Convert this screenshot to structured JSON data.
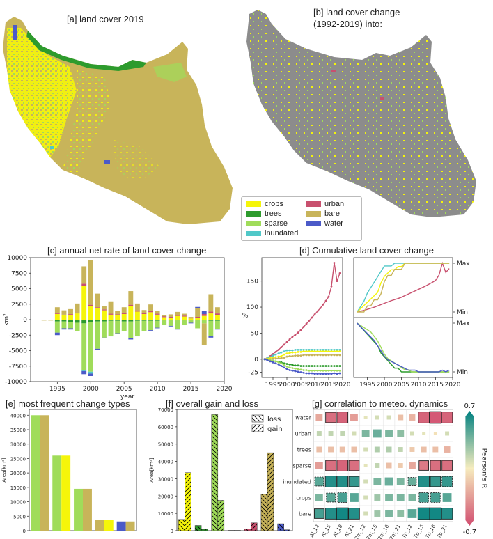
{
  "panels": {
    "a": {
      "title": "[a] land cover 2019"
    },
    "b": {
      "title_line1": "[b] land cover change",
      "title_line2": "(1992-2019) into:"
    },
    "c": {
      "title": "[c] annual net rate of land cover change"
    },
    "d": {
      "title": "[d] Cumulative land cover change"
    },
    "e": {
      "title": "[e] most frequent change types"
    },
    "f": {
      "title": "[f] overall gain and loss"
    },
    "g": {
      "title": "[g] correlation to meteo. dynamics"
    }
  },
  "legend": [
    {
      "label": "crops",
      "color": "#f5f50a"
    },
    {
      "label": "urban",
      "color": "#c8506e"
    },
    {
      "label": "trees",
      "color": "#2d9b2d"
    },
    {
      "label": "bare",
      "color": "#c8b45a"
    },
    {
      "label": "sparse",
      "color": "#a0dc5a"
    },
    {
      "label": "water",
      "color": "#4b5ac8"
    },
    {
      "label": "inundated",
      "color": "#50c8c8"
    }
  ],
  "colorbar": {
    "max": "0.7",
    "min": "-0.7",
    "label": "Pearson's R"
  },
  "chart_data": [
    {
      "type": "bar",
      "panel": "c",
      "title": "[c] annual net rate of land cover change",
      "xlabel": "year",
      "ylabel": "km²",
      "ylim": [
        -10000,
        10000
      ],
      "xlim": [
        1991,
        2020
      ],
      "x_ticks": [
        1995,
        2000,
        2005,
        2010,
        2015,
        2020
      ],
      "y_ticks": [
        -10000,
        -7500,
        -5000,
        -2500,
        0,
        2500,
        5000,
        7500,
        10000
      ],
      "years": [
        1993,
        1994,
        1995,
        1996,
        1997,
        1998,
        1999,
        2000,
        2001,
        2002,
        2003,
        2004,
        2005,
        2006,
        2007,
        2008,
        2009,
        2010,
        2011,
        2012,
        2013,
        2014,
        2015,
        2016,
        2017,
        2018,
        2019
      ],
      "series": [
        {
          "name": "crops",
          "color": "#f5f50a",
          "values": [
            0,
            0,
            900,
            700,
            800,
            1000,
            5500,
            2200,
            1800,
            1500,
            800,
            700,
            900,
            2200,
            1300,
            900,
            1200,
            800,
            400,
            300,
            600,
            500,
            200,
            300,
            600,
            1000,
            700
          ]
        },
        {
          "name": "trees",
          "color": "#2d9b2d",
          "values": [
            0,
            0,
            -300,
            -300,
            -400,
            -500,
            -600,
            -400,
            -300,
            -300,
            -200,
            -200,
            -300,
            -300,
            -200,
            -200,
            -200,
            -200,
            -100,
            -100,
            -100,
            -100,
            -100,
            0,
            0,
            -200,
            -200
          ]
        },
        {
          "name": "sparse",
          "color": "#a0dc5a",
          "values": [
            0,
            0,
            -1800,
            -1100,
            -1000,
            -1300,
            -7500,
            -8000,
            -4400,
            -2600,
            -2400,
            -2000,
            -1500,
            -2700,
            -2400,
            -1600,
            -1500,
            -1100,
            -700,
            -900,
            -1400,
            -700,
            -400,
            -1400,
            -600,
            -2500,
            -1300
          ]
        },
        {
          "name": "inundated",
          "color": "#50c8c8",
          "values": [
            0,
            0,
            0,
            0,
            0,
            0,
            -200,
            -300,
            0,
            0,
            0,
            0,
            0,
            0,
            0,
            0,
            0,
            0,
            0,
            0,
            0,
            0,
            0,
            0,
            0,
            0,
            0
          ]
        },
        {
          "name": "urban",
          "color": "#c8506e",
          "values": [
            0,
            0,
            100,
            100,
            100,
            100,
            300,
            200,
            200,
            150,
            150,
            150,
            200,
            200,
            200,
            150,
            150,
            150,
            150,
            150,
            150,
            150,
            150,
            150,
            300,
            300,
            300
          ]
        },
        {
          "name": "bare",
          "color": "#c8b45a",
          "values": [
            -150,
            -150,
            1000,
            700,
            800,
            1500,
            2800,
            7200,
            2200,
            500,
            2000,
            600,
            900,
            2200,
            1100,
            500,
            1100,
            500,
            200,
            400,
            500,
            300,
            100,
            1400,
            -3500,
            2800,
            1000
          ]
        },
        {
          "name": "water",
          "color": "#4b5ac8",
          "values": [
            0,
            0,
            -400,
            -200,
            -200,
            -100,
            -500,
            -400,
            -200,
            -100,
            -100,
            -100,
            -100,
            -200,
            -100,
            -100,
            -100,
            -100,
            -100,
            -100,
            -100,
            -100,
            -100,
            200,
            500,
            -200,
            -100
          ]
        }
      ]
    },
    {
      "type": "line",
      "panel": "d",
      "title": "[d] Cumulative land cover change",
      "ylabel": "%",
      "ylim": [
        -35,
        195
      ],
      "xlim": [
        1991,
        2020
      ],
      "x_ticks": [
        1995,
        2000,
        2005,
        2010,
        2015,
        2020
      ],
      "y_ticks": [
        -25,
        0,
        50,
        100,
        150
      ],
      "x": [
        1992,
        1993,
        1994,
        1995,
        1996,
        1997,
        1998,
        1999,
        2000,
        2001,
        2002,
        2003,
        2004,
        2005,
        2006,
        2007,
        2008,
        2009,
        2010,
        2011,
        2012,
        2013,
        2014,
        2015,
        2016,
        2017,
        2018,
        2019
      ],
      "series": [
        {
          "name": "urban",
          "color": "#c8506e",
          "values": [
            0,
            3,
            6,
            10,
            14,
            18,
            23,
            28,
            33,
            38,
            43,
            47,
            51,
            56,
            62,
            68,
            74,
            80,
            86,
            92,
            98,
            105,
            112,
            120,
            140,
            185,
            150,
            165
          ]
        },
        {
          "name": "inundated",
          "color": "#50c8c8",
          "values": [
            0,
            2,
            4,
            7,
            9,
            11,
            13,
            15,
            17,
            17,
            17,
            18,
            18,
            18,
            18,
            18,
            18,
            18,
            18,
            18,
            18,
            18,
            18,
            18,
            18,
            18,
            18,
            18
          ]
        },
        {
          "name": "crops",
          "color": "#f5f50a",
          "values": [
            0,
            1,
            2,
            3,
            4,
            5,
            6,
            9,
            11,
            12,
            13,
            13,
            14,
            14,
            15,
            15,
            15,
            15,
            15,
            15,
            15,
            15,
            15,
            15,
            15,
            15,
            15,
            15
          ]
        },
        {
          "name": "bare",
          "color": "#c8b45a",
          "values": [
            0,
            0,
            0,
            1,
            1,
            2,
            2,
            3,
            5,
            6,
            6,
            7,
            7,
            7,
            8,
            8,
            8,
            8,
            8,
            8,
            8,
            8,
            8,
            8,
            8,
            8,
            8,
            8
          ]
        },
        {
          "name": "trees",
          "color": "#2d9b2d",
          "values": [
            0,
            -1,
            -2,
            -3,
            -4,
            -5,
            -6,
            -8,
            -9,
            -10,
            -11,
            -12,
            -12,
            -13,
            -13,
            -13,
            -13,
            -13,
            -13,
            -13,
            -13,
            -13,
            -13,
            -13,
            -13,
            -13,
            -13,
            -13
          ]
        },
        {
          "name": "sparse",
          "color": "#a0dc5a",
          "values": [
            0,
            -1,
            -2,
            -3,
            -4,
            -6,
            -8,
            -11,
            -14,
            -16,
            -17,
            -18,
            -19,
            -20,
            -21,
            -21,
            -22,
            -22,
            -22,
            -22,
            -22,
            -22,
            -22,
            -22,
            -22,
            -22,
            -22,
            -22
          ]
        },
        {
          "name": "water",
          "color": "#4b5ac8",
          "values": [
            0,
            -2,
            -4,
            -6,
            -8,
            -10,
            -13,
            -16,
            -19,
            -21,
            -22,
            -23,
            -24,
            -25,
            -26,
            -27,
            -27,
            -27,
            -28,
            -28,
            -28,
            -28,
            -28,
            -28,
            -28,
            -27,
            -28,
            -27
          ]
        }
      ],
      "inset_labels": [
        "Max",
        "Min"
      ]
    },
    {
      "type": "bar",
      "panel": "e",
      "title": "[e] most frequent change types",
      "ylabel": "Area[km²]",
      "ylim": [
        0,
        42000
      ],
      "y_ticks": [
        0,
        5000,
        10000,
        15000,
        20000,
        25000,
        30000,
        35000,
        40000
      ],
      "pairs": [
        {
          "from": "sparse",
          "to": "bare",
          "from_color": "#a0dc5a",
          "to_color": "#c8b45a",
          "value": 40000
        },
        {
          "from": "sparse",
          "to": "crops",
          "from_color": "#a0dc5a",
          "to_color": "#f5f50a",
          "value": 26000
        },
        {
          "from": "sparse",
          "to": "bare",
          "from_color": "#a0dc5a",
          "to_color": "#c8b45a",
          "value": 14500
        },
        {
          "from": "bare",
          "to": "crops",
          "from_color": "#c8b45a",
          "to_color": "#f5f50a",
          "value": 3800
        },
        {
          "from": "water",
          "to": "bare",
          "from_color": "#4b5ac8",
          "to_color": "#c8b45a",
          "value": 3200
        }
      ]
    },
    {
      "type": "bar",
      "panel": "f",
      "title": "[f] overall gain and loss",
      "ylabel": "Area[km²]",
      "ylim": [
        0,
        70000
      ],
      "y_ticks": [
        0,
        10000,
        20000,
        30000,
        40000,
        50000,
        60000,
        70000
      ],
      "legend": [
        "loss",
        "gain"
      ],
      "classes": [
        {
          "name": "crops",
          "color": "#f5f50a",
          "loss": 6500,
          "gain": 33500
        },
        {
          "name": "trees",
          "color": "#2d9b2d",
          "loss": 3000,
          "gain": 800
        },
        {
          "name": "sparse",
          "color": "#a0dc5a",
          "loss": 67000,
          "gain": 17500
        },
        {
          "name": "inundated",
          "color": "#50c8c8",
          "loss": 200,
          "gain": 200
        },
        {
          "name": "urban",
          "color": "#c8506e",
          "loss": 1000,
          "gain": 4500
        },
        {
          "name": "bare",
          "color": "#c8b45a",
          "loss": 21000,
          "gain": 45000
        },
        {
          "name": "water",
          "color": "#4b5ac8",
          "loss": 4000,
          "gain": 500
        }
      ]
    },
    {
      "type": "heatmap",
      "panel": "g",
      "title": "[g] correlation to meteo. dynamics",
      "columns": [
        "AI_12",
        "AI_15",
        "AI_18",
        "AI_21",
        "T2m_12",
        "T2m_15",
        "T2m_18",
        "T2m_21",
        "Tp_12",
        "Tp_15",
        "Tp_18",
        "Tp_21"
      ],
      "rows": [
        "water",
        "urban",
        "trees",
        "sparse",
        "inundated",
        "crops",
        "bare"
      ],
      "values": [
        [
          -0.3,
          -0.55,
          -0.6,
          -0.35,
          0.05,
          0.1,
          0.1,
          -0.2,
          -0.25,
          -0.6,
          -0.65,
          -0.6
        ],
        [
          0.15,
          0.15,
          0.15,
          0.1,
          0.35,
          0.4,
          0.35,
          0.3,
          0.1,
          0.05,
          -0.05,
          0.1
        ],
        [
          -0.2,
          -0.2,
          -0.2,
          -0.2,
          0.1,
          0.2,
          0.2,
          0.15,
          -0.15,
          -0.2,
          -0.2,
          -0.25
        ],
        [
          -0.35,
          -0.55,
          -0.6,
          -0.55,
          0.05,
          0.15,
          -0.2,
          -0.15,
          -0.3,
          -0.5,
          -0.55,
          -0.55
        ],
        [
          0.45,
          0.6,
          0.6,
          0.55,
          0.1,
          0.35,
          0.4,
          0.35,
          0.4,
          0.6,
          0.55,
          0.55
        ],
        [
          0.35,
          0.45,
          0.5,
          0.45,
          0.1,
          0.25,
          0.35,
          0.35,
          0.35,
          0.5,
          0.5,
          0.45
        ],
        [
          0.5,
          0.6,
          0.65,
          0.6,
          0.1,
          0.25,
          0.35,
          0.3,
          0.45,
          0.65,
          0.65,
          0.6
        ]
      ],
      "significant": [
        [
          0,
          1,
          1,
          0,
          0,
          0,
          0,
          0,
          0,
          1,
          1,
          1
        ],
        [
          0,
          0,
          0,
          0,
          0,
          0,
          0,
          0,
          0,
          0,
          0,
          0
        ],
        [
          0,
          0,
          0,
          0,
          0,
          0,
          0,
          0,
          0,
          0,
          0,
          0
        ],
        [
          0,
          1,
          1,
          1,
          0,
          0,
          0,
          0,
          0,
          1,
          1,
          1
        ],
        [
          1,
          1,
          1,
          1,
          0,
          0,
          0,
          0,
          1,
          1,
          1,
          1
        ],
        [
          0,
          1,
          1,
          0,
          0,
          0,
          0,
          0,
          0,
          1,
          1,
          0
        ],
        [
          1,
          1,
          1,
          1,
          0,
          0,
          0,
          0,
          0,
          1,
          1,
          1
        ]
      ],
      "dashed": [
        [
          0,
          0,
          0,
          0,
          0,
          0,
          0,
          0,
          0,
          0,
          0,
          0
        ],
        [
          0,
          0,
          0,
          0,
          0,
          0,
          0,
          0,
          0,
          0,
          0,
          0
        ],
        [
          0,
          0,
          0,
          0,
          0,
          0,
          0,
          0,
          0,
          0,
          0,
          0
        ],
        [
          0,
          0,
          0,
          0,
          0,
          0,
          0,
          0,
          0,
          0,
          0,
          0
        ],
        [
          1,
          0,
          0,
          0,
          0,
          0,
          0,
          0,
          1,
          0,
          0,
          1
        ],
        [
          0,
          1,
          1,
          0,
          0,
          0,
          0,
          0,
          0,
          1,
          1,
          0
        ],
        [
          0,
          0,
          0,
          0,
          0,
          0,
          0,
          0,
          0,
          0,
          0,
          0
        ]
      ],
      "vmin": -0.7,
      "vmax": 0.7
    }
  ]
}
